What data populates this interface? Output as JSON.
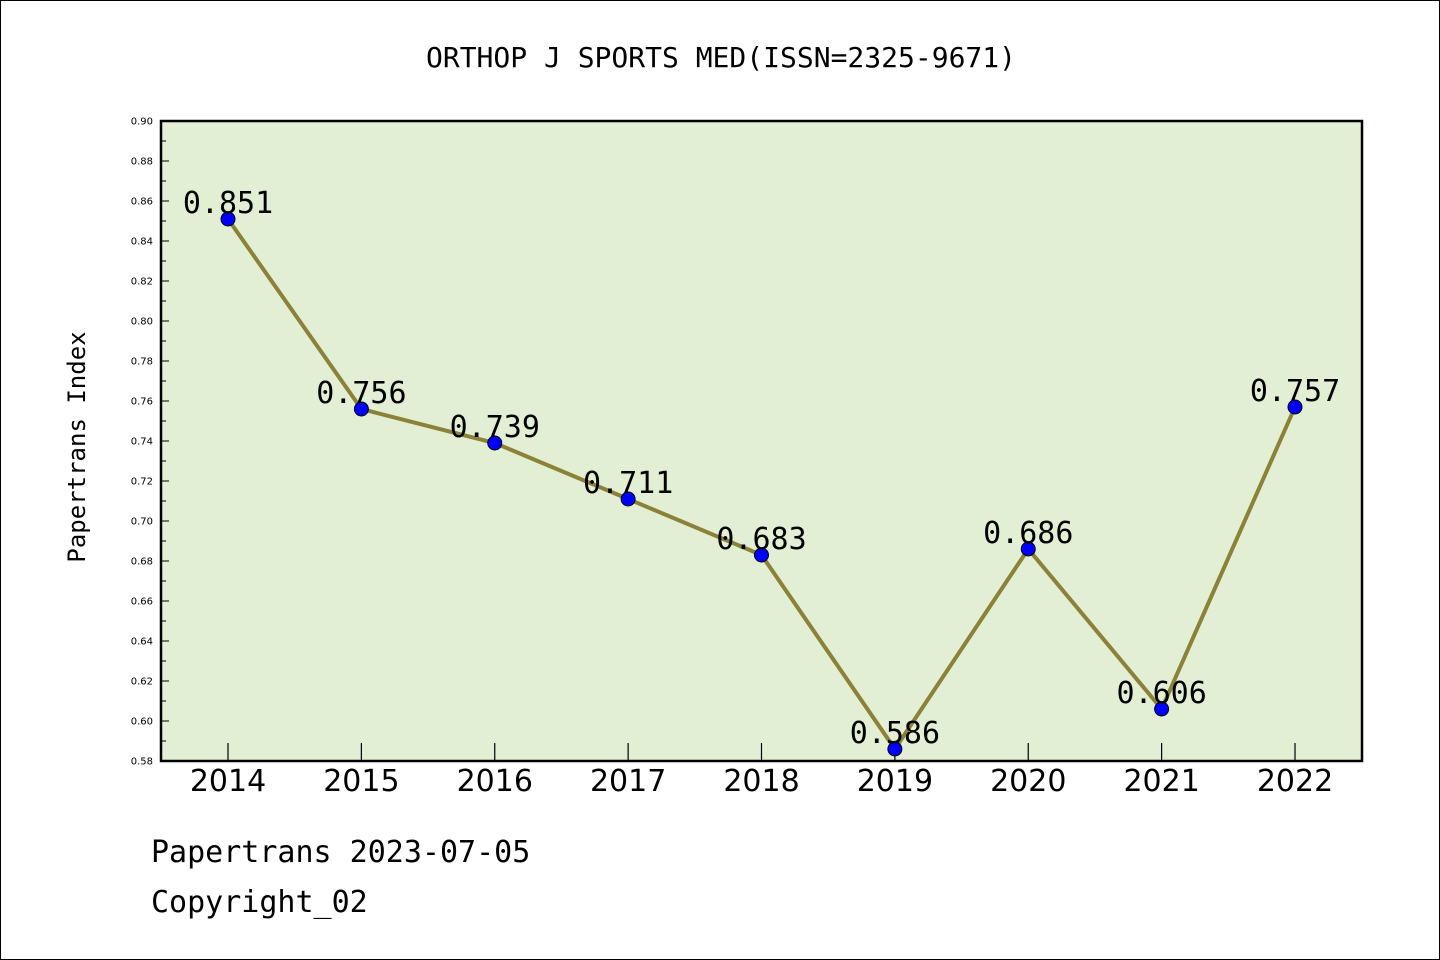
{
  "chart_data": {
    "type": "line",
    "title": "ORTHOP J SPORTS MED(ISSN=2325-9671)",
    "xlabel": "",
    "ylabel": "Papertrans Index",
    "categories": [
      "2014",
      "2015",
      "2016",
      "2017",
      "2018",
      "2019",
      "2020",
      "2021",
      "2022"
    ],
    "series": [
      {
        "values": [
          0.851,
          0.756,
          0.739,
          0.711,
          0.683,
          0.586,
          0.686,
          0.606,
          0.757
        ]
      }
    ],
    "data_labels": [
      "0.851",
      "0.756",
      "0.739",
      "0.711",
      "0.683",
      "0.586",
      "0.686",
      "0.606",
      "0.757"
    ],
    "ylim": [
      0.58,
      0.9
    ],
    "yticks": [
      "0.58",
      "0.60",
      "0.62",
      "0.64",
      "0.66",
      "0.68",
      "0.70",
      "0.72",
      "0.74",
      "0.76",
      "0.78",
      "0.80",
      "0.82",
      "0.84",
      "0.86",
      "0.88",
      "0.90"
    ],
    "grid": false,
    "legend": "none",
    "colors": {
      "plot_background": "#e2efd4",
      "line": "#8b8238",
      "marker": "#0000ff",
      "axis": "#000000"
    }
  },
  "footer": {
    "date_text": "Papertrans 2023-07-05",
    "copyright_text": "Copyright_02"
  }
}
